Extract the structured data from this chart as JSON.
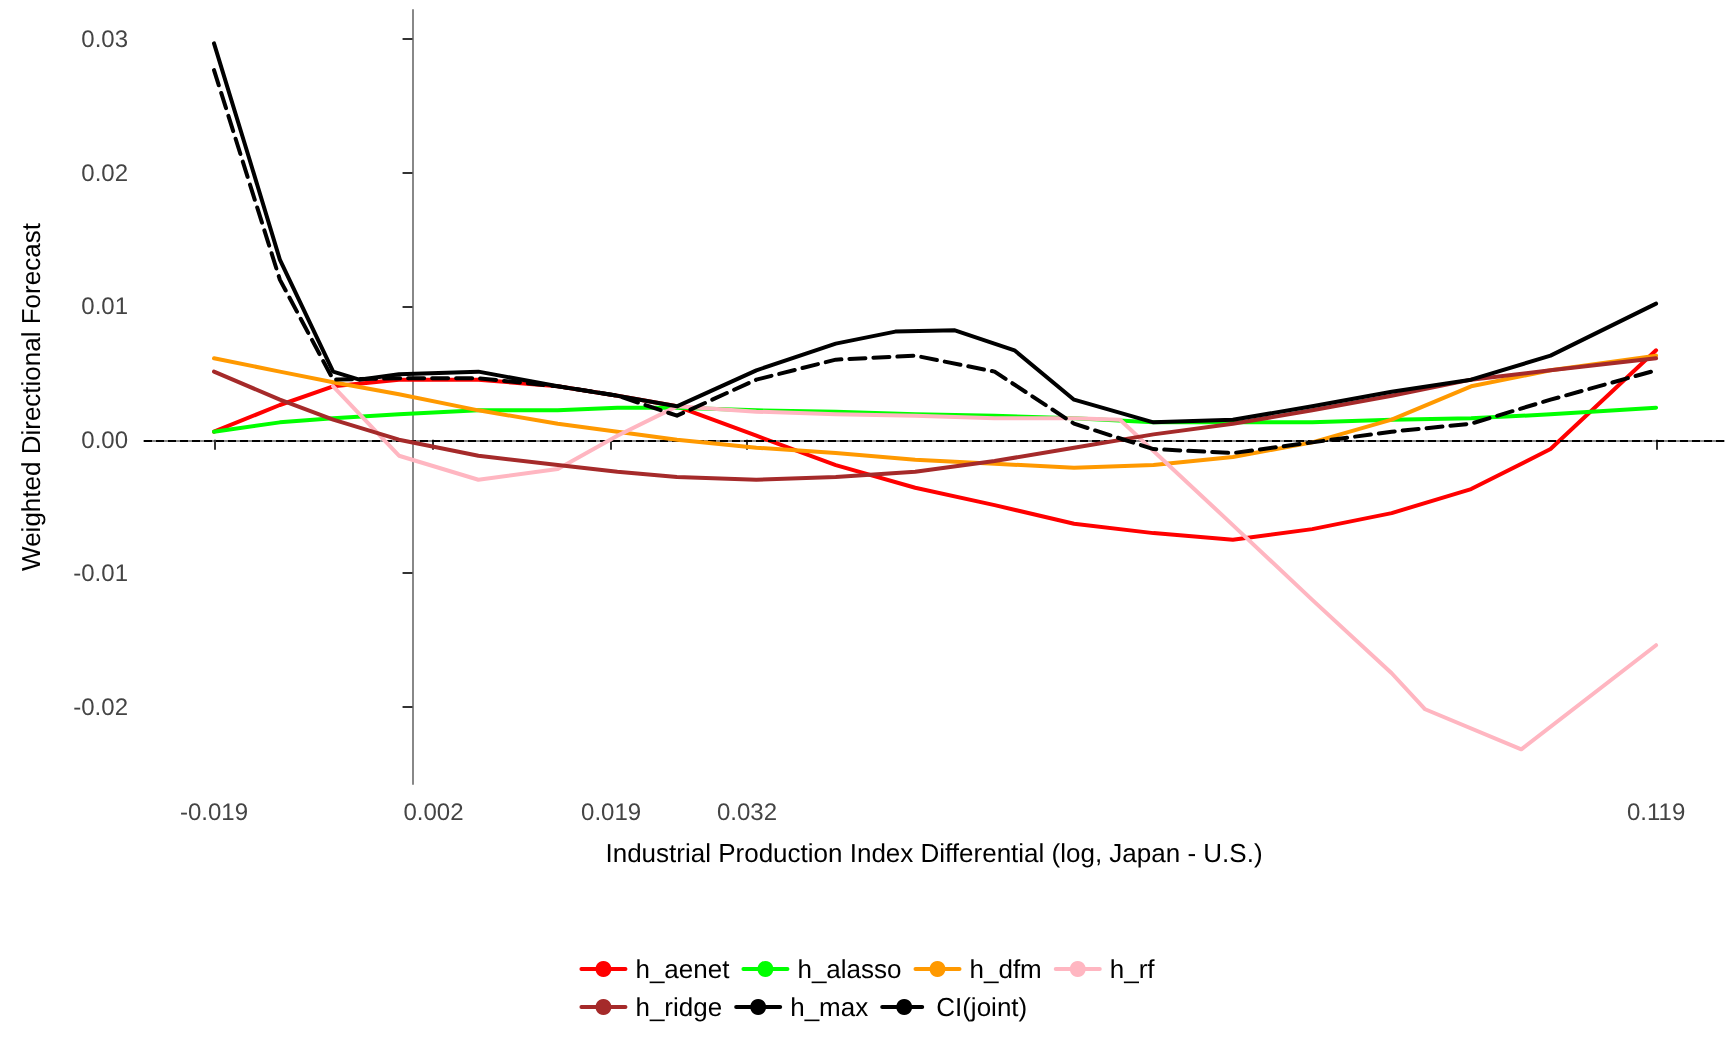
{
  "chart_data": {
    "type": "line",
    "xlabel": "Industrial Production Index Differential (log, Japan - U.S.)",
    "ylabel": "Weighted Directional Forecast",
    "x": [
      -0.019,
      -0.0127,
      -0.0076,
      -0.0013,
      0.0063,
      0.0139,
      0.0196,
      0.0253,
      0.0329,
      0.0405,
      0.0481,
      0.0557,
      0.0633,
      0.0709,
      0.0785,
      0.0861,
      0.0937,
      0.1013,
      0.1089,
      0.119
    ],
    "series": [
      {
        "name": "h_aenet",
        "color": "#ff0000",
        "values": [
          0.0006,
          0.0026,
          0.004,
          0.0045,
          0.0045,
          0.004,
          0.0033,
          0.0025,
          0.0003,
          -0.0019,
          -0.0036,
          -0.0049,
          -0.0063,
          -0.007,
          -0.0075,
          -0.0067,
          -0.0055,
          -0.0037,
          -0.0007,
          0.0067
        ]
      },
      {
        "name": "h_alasso",
        "color": "#00ff00",
        "values": [
          0.0006,
          0.0013,
          0.0016,
          0.0019,
          0.0022,
          0.0022,
          0.0024,
          0.0024,
          0.0022,
          0.0021,
          0.0019,
          0.0018,
          0.0016,
          0.0013,
          0.0013,
          0.0013,
          0.0015,
          0.0016,
          0.0019,
          0.0024
        ]
      },
      {
        "name": "h_dfm",
        "color": "#ff9900",
        "values": [
          0.0061,
          0.0051,
          0.0043,
          0.0034,
          0.0022,
          0.0012,
          0.0006,
          0.0,
          -0.0006,
          -0.001,
          -0.0015,
          -0.0018,
          -0.0021,
          -0.0019,
          -0.0013,
          -0.0002,
          0.0015,
          0.004,
          0.0052,
          0.0063
        ]
      },
      {
        "name": "h_rf",
        "color": "#ffb6c1",
        "x": [
          -0.0076,
          -0.0013,
          0.0063,
          0.0139,
          0.0196,
          0.0253,
          0.0329,
          0.0405,
          0.0481,
          0.0557,
          0.0633,
          0.0677,
          0.0785,
          0.0861,
          0.0937,
          0.0969,
          0.1061,
          0.119
        ],
        "values": [
          0.004,
          -0.0012,
          -0.003,
          -0.0022,
          0.0003,
          0.0025,
          0.0021,
          0.0019,
          0.0018,
          0.0016,
          0.0016,
          0.0015,
          -0.0064,
          -0.012,
          -0.0175,
          -0.0202,
          -0.0232,
          -0.0154
        ]
      },
      {
        "name": "h_ridge",
        "color": "#a52a2a",
        "values": [
          0.0051,
          0.003,
          0.0015,
          0.0,
          -0.0012,
          -0.0019,
          -0.0024,
          -0.0028,
          -0.003,
          -0.0028,
          -0.0024,
          -0.0016,
          -0.0006,
          0.0004,
          0.0012,
          0.0022,
          0.0033,
          0.0045,
          0.0052,
          0.0061
        ]
      },
      {
        "name": "h_max",
        "color": "#000000",
        "x": [
          -0.019,
          -0.0156,
          -0.0127,
          -0.0076,
          -0.0051,
          -0.0013,
          0.0063,
          0.0139,
          0.0196,
          0.0253,
          0.0329,
          0.0405,
          0.0462,
          0.0519,
          0.0576,
          0.0633,
          0.0709,
          0.0785,
          0.0861,
          0.0937,
          0.1013,
          0.1089,
          0.119
        ],
        "values": [
          0.0297,
          0.021,
          0.0135,
          0.0051,
          0.0045,
          0.0049,
          0.0051,
          0.004,
          0.0033,
          0.0025,
          0.0052,
          0.0072,
          0.0081,
          0.0082,
          0.0067,
          0.003,
          0.0013,
          0.0015,
          0.0025,
          0.0036,
          0.0045,
          0.0063,
          0.0102
        ]
      },
      {
        "name": "CI(joint)",
        "color": "#000000",
        "line_style": "dashed",
        "values": [
          0.0277,
          0.012,
          0.0045,
          0.0046,
          0.0046,
          0.004,
          0.0033,
          0.0018,
          0.0045,
          0.006,
          0.0063,
          0.0051,
          0.0012,
          -0.0007,
          -0.001,
          -0.0002,
          0.0006,
          0.0012,
          0.003,
          0.0052
        ]
      }
    ],
    "xlim": [
      -0.0257,
      0.1255
    ],
    "xticks": [
      -0.019,
      0.002,
      0.019,
      0.032,
      0.119
    ],
    "ylim": [
      -0.0258,
      0.0322
    ],
    "yticks": [
      {
        "value": -0.02,
        "label": "-0.02"
      },
      {
        "value": -0.01,
        "label": "-0.01"
      },
      {
        "value": 0,
        "label": "0.00"
      },
      {
        "value": 0.01,
        "label": "0.01"
      },
      {
        "value": 0.02,
        "label": "0.02"
      },
      {
        "value": 0.03,
        "label": "0.03"
      }
    ],
    "ref_lines": [
      {
        "axis": "y",
        "value": 0,
        "color": "#000000",
        "line_style": "dashed"
      }
    ],
    "grid": false,
    "legend": "bottom",
    "marker": "none",
    "line_style": "solid"
  }
}
